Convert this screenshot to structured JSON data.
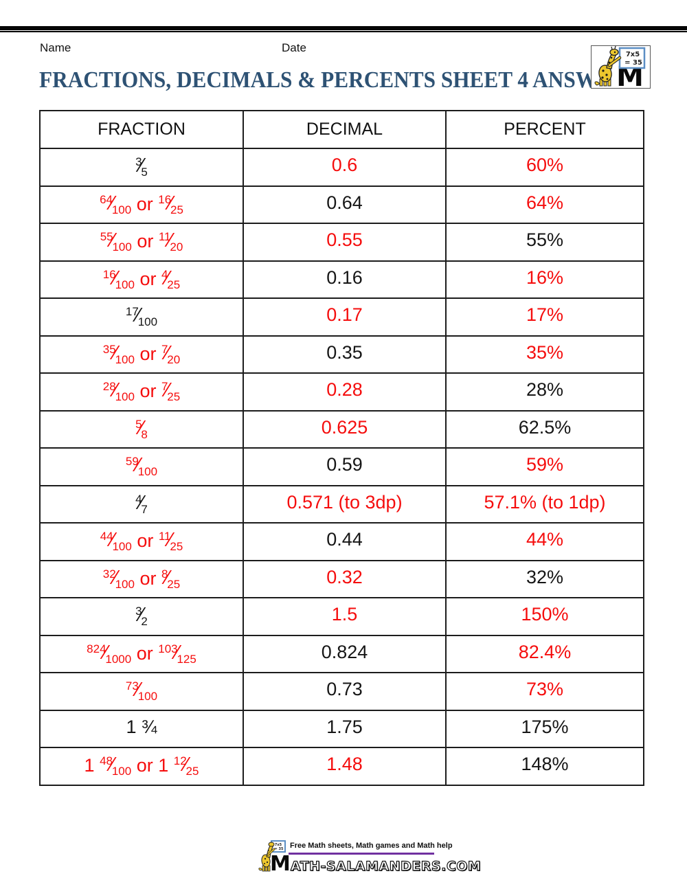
{
  "page": {
    "name_label": "Name",
    "date_label": "Date",
    "title": "FRACTIONS, DECIMALS & PERCENTS SHEET 4 ANSWERS"
  },
  "colors": {
    "red": "#f50d0d",
    "black": "#161616",
    "title_blue": "#2e5274",
    "purple_rule": "#7030a0",
    "board_border_blue": "#5b8ec4",
    "salamander_yellow": "#edc72d"
  },
  "logo": {
    "board_line1": "7x5",
    "board_line2": "= 35",
    "m_letter": "M"
  },
  "table": {
    "headers": [
      "FRACTION",
      "DECIMAL",
      "PERCENT"
    ],
    "rows": [
      {
        "fraction": {
          "color": "black",
          "parts": [
            {
              "t": "frac",
              "n": "3",
              "d": "5"
            }
          ]
        },
        "decimal": {
          "color": "red",
          "text": "0.6"
        },
        "percent": {
          "color": "red",
          "text": "60%"
        }
      },
      {
        "fraction": {
          "color": "red",
          "parts": [
            {
              "t": "frac",
              "n": "64",
              "d": "100"
            },
            {
              "t": "text",
              "v": " or "
            },
            {
              "t": "frac",
              "n": "16",
              "d": "25"
            }
          ]
        },
        "decimal": {
          "color": "black",
          "text": "0.64"
        },
        "percent": {
          "color": "red",
          "text": "64%"
        }
      },
      {
        "fraction": {
          "color": "red",
          "parts": [
            {
              "t": "frac",
              "n": "55",
              "d": "100"
            },
            {
              "t": "text",
              "v": " or "
            },
            {
              "t": "frac",
              "n": "11",
              "d": "20"
            }
          ]
        },
        "decimal": {
          "color": "red",
          "text": "0.55"
        },
        "percent": {
          "color": "black",
          "text": "55%"
        }
      },
      {
        "fraction": {
          "color": "red",
          "parts": [
            {
              "t": "frac",
              "n": "16",
              "d": "100"
            },
            {
              "t": "text",
              "v": " or "
            },
            {
              "t": "frac",
              "n": "4",
              "d": "25"
            }
          ]
        },
        "decimal": {
          "color": "black",
          "text": "0.16"
        },
        "percent": {
          "color": "red",
          "text": "16%"
        }
      },
      {
        "fraction": {
          "color": "black",
          "parts": [
            {
              "t": "frac",
              "n": "17",
              "d": "100"
            }
          ]
        },
        "decimal": {
          "color": "red",
          "text": "0.17"
        },
        "percent": {
          "color": "red",
          "text": "17%"
        }
      },
      {
        "fraction": {
          "color": "red",
          "parts": [
            {
              "t": "frac",
              "n": "35",
              "d": "100"
            },
            {
              "t": "text",
              "v": " or "
            },
            {
              "t": "frac",
              "n": "7",
              "d": "20"
            }
          ]
        },
        "decimal": {
          "color": "black",
          "text": "0.35"
        },
        "percent": {
          "color": "red",
          "text": "35%"
        }
      },
      {
        "fraction": {
          "color": "red",
          "parts": [
            {
              "t": "frac",
              "n": "28",
              "d": "100"
            },
            {
              "t": "text",
              "v": " or "
            },
            {
              "t": "frac",
              "n": "7",
              "d": "25"
            }
          ]
        },
        "decimal": {
          "color": "red",
          "text": "0.28"
        },
        "percent": {
          "color": "black",
          "text": "28%"
        }
      },
      {
        "fraction": {
          "color": "red",
          "parts": [
            {
              "t": "frac",
              "n": "5",
              "d": "8"
            }
          ]
        },
        "decimal": {
          "color": "red",
          "text": "0.625"
        },
        "percent": {
          "color": "black",
          "text": "62.5%"
        }
      },
      {
        "fraction": {
          "color": "red",
          "parts": [
            {
              "t": "frac",
              "n": "59",
              "d": "100"
            }
          ]
        },
        "decimal": {
          "color": "black",
          "text": "0.59"
        },
        "percent": {
          "color": "red",
          "text": "59%"
        }
      },
      {
        "fraction": {
          "color": "black",
          "parts": [
            {
              "t": "frac",
              "n": "4",
              "d": "7"
            }
          ]
        },
        "decimal": {
          "color": "red",
          "text": "0.571 (to 3dp)"
        },
        "percent": {
          "color": "red",
          "text": "57.1% (to 1dp)"
        }
      },
      {
        "fraction": {
          "color": "red",
          "parts": [
            {
              "t": "frac",
              "n": "44",
              "d": "100"
            },
            {
              "t": "text",
              "v": " or "
            },
            {
              "t": "frac",
              "n": "11",
              "d": "25"
            }
          ]
        },
        "decimal": {
          "color": "black",
          "text": "0.44"
        },
        "percent": {
          "color": "red",
          "text": "44%"
        }
      },
      {
        "fraction": {
          "color": "red",
          "parts": [
            {
              "t": "frac",
              "n": "32",
              "d": "100"
            },
            {
              "t": "text",
              "v": " or "
            },
            {
              "t": "frac",
              "n": "8",
              "d": "25"
            }
          ]
        },
        "decimal": {
          "color": "red",
          "text": "0.32"
        },
        "percent": {
          "color": "black",
          "text": "32%"
        }
      },
      {
        "fraction": {
          "color": "black",
          "parts": [
            {
              "t": "frac",
              "n": "3",
              "d": "2"
            }
          ]
        },
        "decimal": {
          "color": "red",
          "text": "1.5"
        },
        "percent": {
          "color": "red",
          "text": "150%"
        }
      },
      {
        "fraction": {
          "color": "red",
          "parts": [
            {
              "t": "frac",
              "n": "824",
              "d": "1000"
            },
            {
              "t": "text",
              "v": " or "
            },
            {
              "t": "frac",
              "n": "103",
              "d": "125"
            }
          ]
        },
        "decimal": {
          "color": "black",
          "text": "0.824"
        },
        "percent": {
          "color": "red",
          "text": "82.4%"
        }
      },
      {
        "fraction": {
          "color": "red",
          "parts": [
            {
              "t": "frac",
              "n": "73",
              "d": "100"
            }
          ]
        },
        "decimal": {
          "color": "black",
          "text": "0.73"
        },
        "percent": {
          "color": "red",
          "text": "73%"
        }
      },
      {
        "fraction": {
          "color": "black",
          "parts": [
            {
              "t": "text",
              "v": "1 ¾"
            }
          ]
        },
        "decimal": {
          "color": "black",
          "text": "1.75"
        },
        "percent": {
          "color": "black",
          "text": "175%"
        }
      },
      {
        "fraction": {
          "color": "red",
          "parts": [
            {
              "t": "text",
              "v": "1 "
            },
            {
              "t": "frac",
              "n": "48",
              "d": "100"
            },
            {
              "t": "text",
              "v": " or 1 "
            },
            {
              "t": "frac",
              "n": "12",
              "d": "25"
            }
          ]
        },
        "decimal": {
          "color": "red",
          "text": "1.48"
        },
        "percent": {
          "color": "black",
          "text": "148%"
        }
      }
    ]
  },
  "footer": {
    "tagline": "Free Math sheets, Math games and Math help",
    "site_m": "M",
    "site_rest": "ATH-SALAMANDERS.COM"
  }
}
